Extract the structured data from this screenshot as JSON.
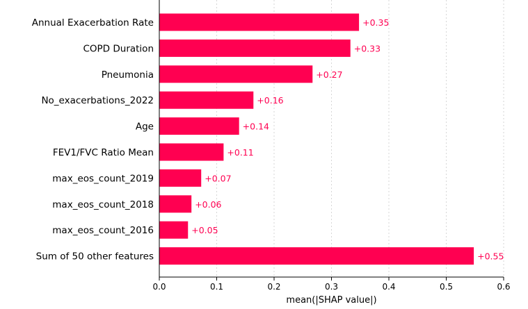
{
  "chart_data": {
    "type": "bar",
    "orientation": "horizontal",
    "categories": [
      "Annual Exacerbation Rate",
      "COPD Duration",
      "Pneumonia",
      "No_exacerbations_2022",
      "Age",
      "FEV1/FVC Ratio Mean",
      "max_eos_count_2019",
      "max_eos_count_2018",
      "max_eos_count_2016",
      "Sum of 50 other features"
    ],
    "values": [
      0.348,
      0.333,
      0.267,
      0.164,
      0.139,
      0.112,
      0.073,
      0.056,
      0.05,
      0.548
    ],
    "value_labels": [
      "+0.35",
      "+0.33",
      "+0.27",
      "+0.16",
      "+0.14",
      "+0.11",
      "+0.07",
      "+0.06",
      "+0.05",
      "+0.55"
    ],
    "xlabel": "mean(|SHAP value|)",
    "ylabel": "",
    "title": "",
    "xlim": [
      0.0,
      0.6
    ],
    "xticks": [
      "0.0",
      "0.1",
      "0.2",
      "0.3",
      "0.4",
      "0.5",
      "0.6"
    ],
    "bar_color": "#ff0051",
    "label_color": "#ff0051",
    "grid": "vertical dashed"
  }
}
